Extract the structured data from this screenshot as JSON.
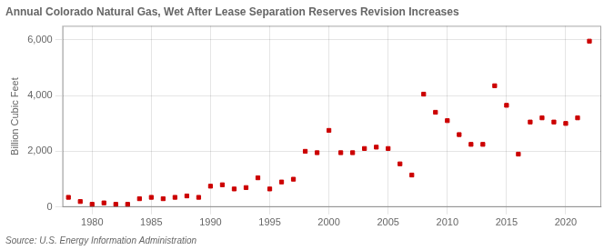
{
  "chart_data": {
    "type": "scatter",
    "title": "Annual Colorado Natural Gas, Wet After Lease Separation Reserves Revision Increases",
    "ylabel": "Billion Cubic Feet",
    "annotations": [
      "Source: U.S. Energy Information Administration"
    ],
    "x": [
      1978,
      1979,
      1980,
      1981,
      1982,
      1983,
      1984,
      1985,
      1986,
      1987,
      1988,
      1989,
      1990,
      1991,
      1992,
      1993,
      1994,
      1995,
      1996,
      1997,
      1998,
      1999,
      2000,
      2001,
      2002,
      2003,
      2004,
      2005,
      2006,
      2007,
      2008,
      2009,
      2010,
      2011,
      2012,
      2013,
      2014,
      2015,
      2016,
      2017,
      2018,
      2019,
      2020,
      2021,
      2022
    ],
    "values": [
      350,
      200,
      100,
      150,
      100,
      100,
      300,
      350,
      300,
      350,
      400,
      350,
      750,
      800,
      650,
      700,
      1050,
      650,
      900,
      1000,
      2000,
      1950,
      2750,
      1950,
      1950,
      2100,
      2150,
      2100,
      1550,
      1150,
      4050,
      3400,
      3100,
      2600,
      2250,
      2250,
      4350,
      3650,
      1900,
      3050,
      3200,
      3050,
      3000,
      3200,
      5950
    ],
    "color": "#cc0000",
    "marker": "square",
    "xlim": [
      1977.5,
      2023
    ],
    "xticks": [
      1980,
      1985,
      1990,
      1995,
      2000,
      2005,
      2010,
      2015,
      2020
    ],
    "ylim": [
      0,
      6500
    ],
    "yticks": [
      0,
      {
        "value": 2000,
        "label": "2,000"
      },
      {
        "value": 4000,
        "label": "4,000"
      },
      {
        "value": 6000,
        "label": "6,000"
      }
    ],
    "grid": true
  }
}
